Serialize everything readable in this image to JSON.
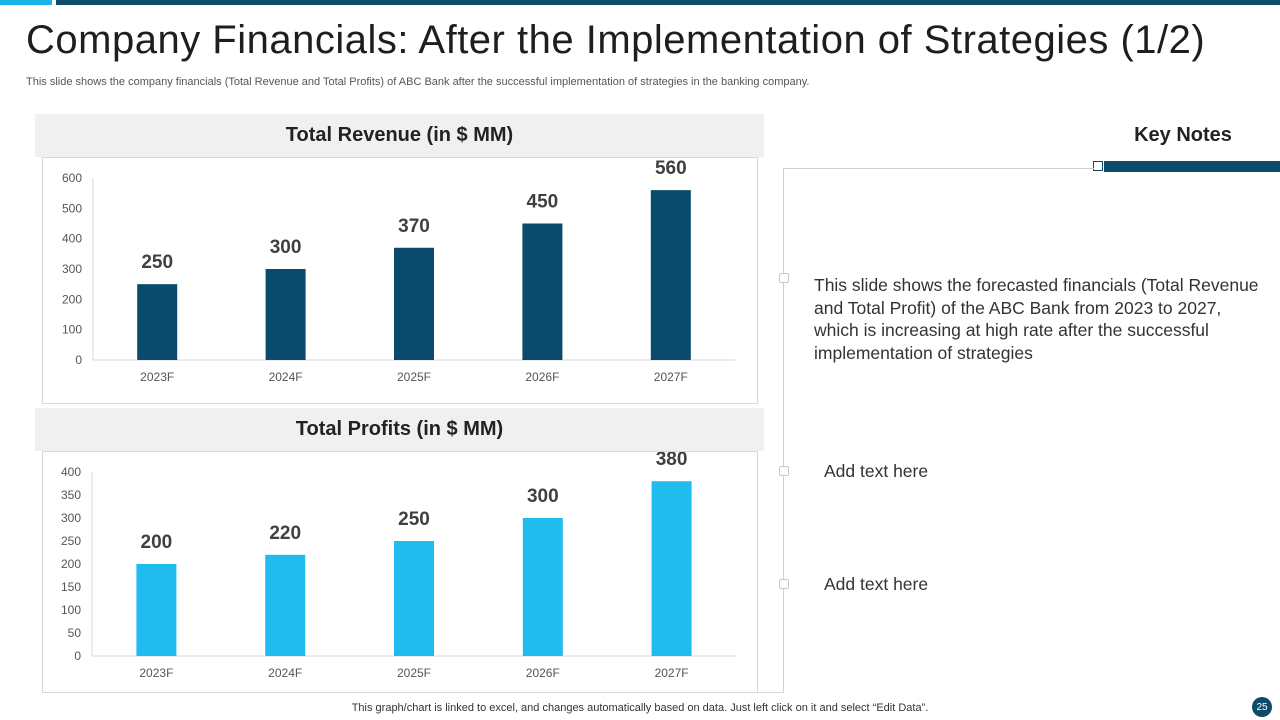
{
  "slide": {
    "title": "Company Financials: After the Implementation of Strategies (1/2)",
    "subtitle": "This slide shows the company financials (Total Revenue and Total Profits) of ABC Bank after the successful implementation of strategies in the banking company.",
    "footer": "This graph/chart is linked to excel,  and changes automatically based on data. Just left click on it and select “Edit Data”.",
    "page_number": "25"
  },
  "colors": {
    "revenue": "#0a4a6b",
    "profits": "#21bcee",
    "accent": "#0d4b6a"
  },
  "key_notes": {
    "title": "Key Notes",
    "items": [
      "This slide shows the forecasted financials (Total Revenue and Total Profit) of the ABC Bank from 2023 to 2027, which is increasing at high rate after the successful implementation of strategies",
      "Add text here",
      "Add text here"
    ]
  },
  "chart_data": [
    {
      "type": "bar",
      "title": "Total Revenue (in $ MM)",
      "categories": [
        "2023F",
        "2024F",
        "2025F",
        "2026F",
        "2027F"
      ],
      "values": [
        250,
        300,
        370,
        450,
        560
      ],
      "ylim": [
        0,
        600
      ],
      "yticks": [
        0,
        100,
        200,
        300,
        400,
        500,
        600
      ],
      "xlabel": "",
      "ylabel": "",
      "grid": false
    },
    {
      "type": "bar",
      "title": "Total Profits (in $ MM)",
      "categories": [
        "2023F",
        "2024F",
        "2025F",
        "2026F",
        "2027F"
      ],
      "values": [
        200,
        220,
        250,
        300,
        380
      ],
      "ylim": [
        0,
        400
      ],
      "yticks": [
        0,
        50,
        100,
        150,
        200,
        250,
        300,
        350,
        400
      ],
      "xlabel": "",
      "ylabel": "",
      "grid": false
    }
  ]
}
